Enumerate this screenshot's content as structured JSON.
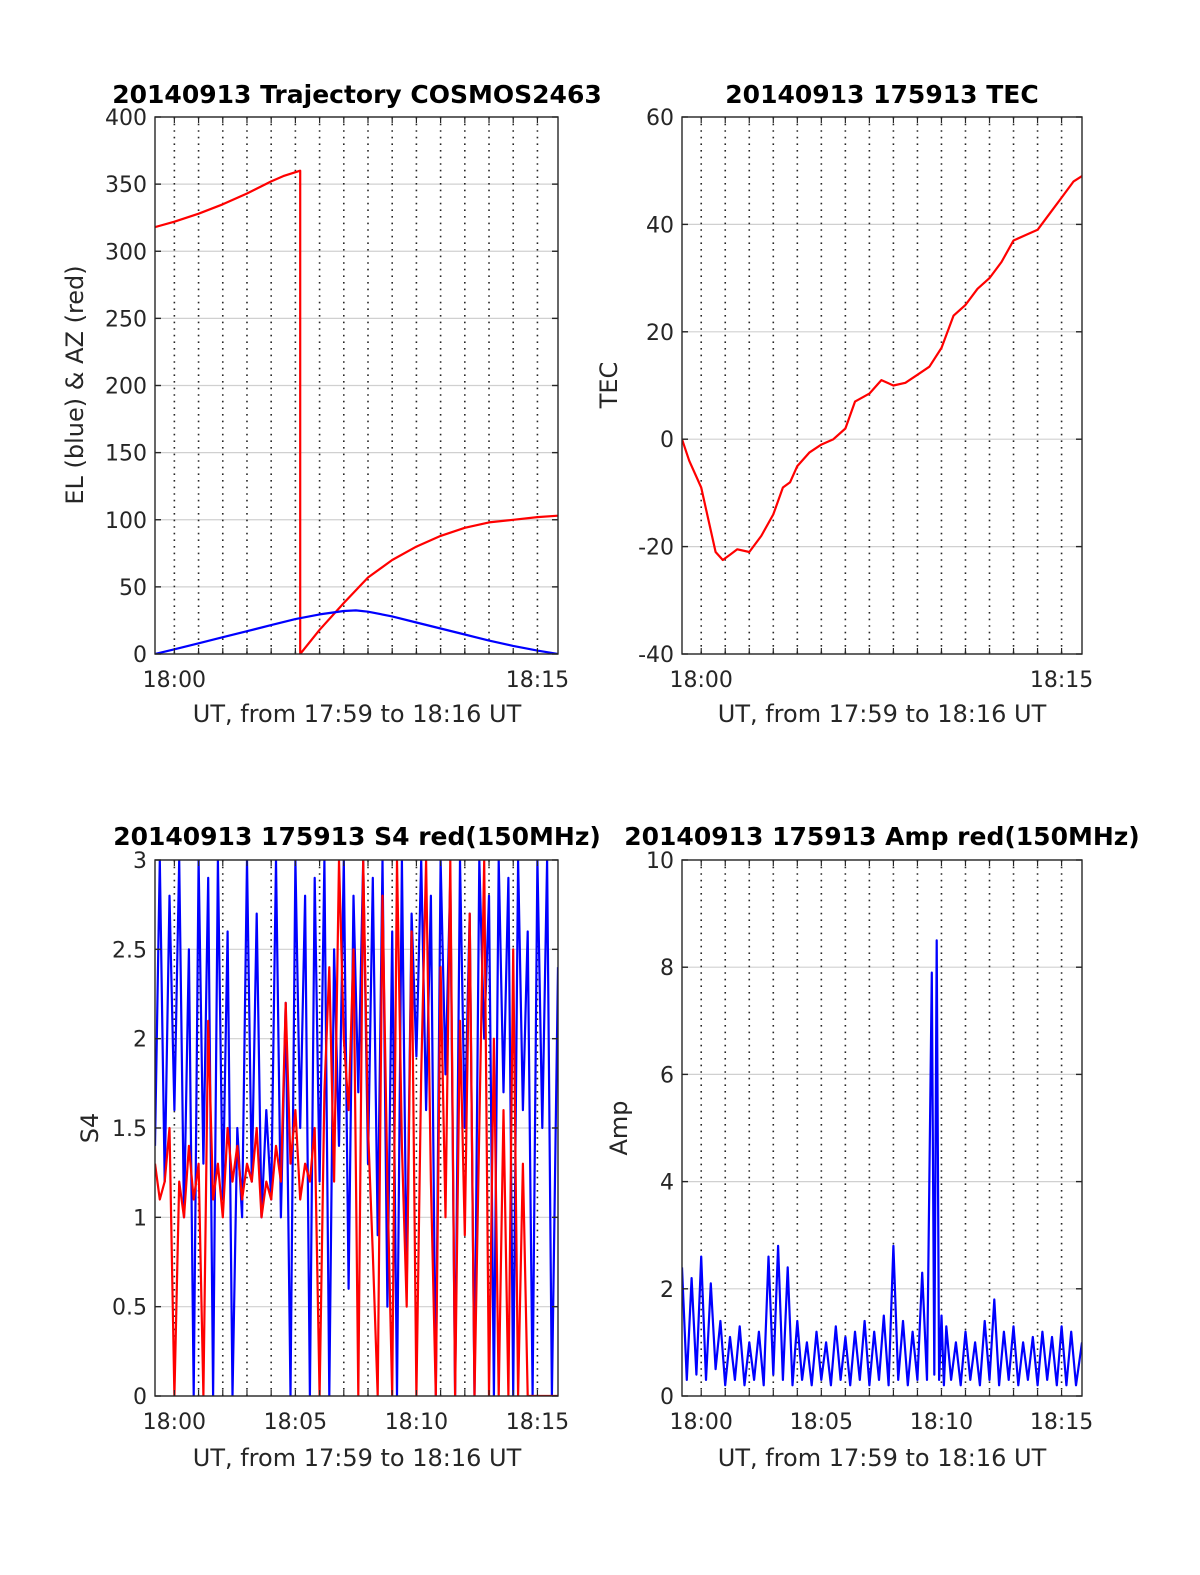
{
  "colors": {
    "el": "#0000ff",
    "az": "#ff0000",
    "tec": "#ff0000",
    "s4_blue": "#0000ff",
    "s4_red": "#ff0000",
    "amp": "#0000ff",
    "grid": "#d0d0d0",
    "vgrid": "#262626"
  },
  "chart_data": [
    {
      "id": "trajectory",
      "type": "line",
      "title": "20140913 Trajectory COSMOS2463",
      "xlabel": "UT, from 17:59 to 18:16 UT",
      "ylabel": "EL (blue) & AZ (red)",
      "xlim_min": [
        -0.8,
        15.85
      ],
      "ylim": [
        0,
        400
      ],
      "yticks": [
        0,
        50,
        100,
        150,
        200,
        250,
        300,
        350,
        400
      ],
      "xticks": [
        {
          "v": 0,
          "label": "18:00"
        },
        {
          "v": 15,
          "label": "18:15"
        }
      ],
      "grid": "on",
      "series": [
        {
          "key": "az",
          "x": [
            -0.8,
            0,
            1,
            2,
            3,
            4,
            4.5,
            5.2,
            5.2,
            6,
            7,
            8,
            9,
            10,
            11,
            12,
            13,
            14,
            15,
            15.85
          ],
          "y": [
            318,
            322,
            328,
            335,
            343,
            352,
            356,
            360,
            0,
            18,
            38,
            57,
            70,
            80,
            88,
            94,
            98,
            100,
            102,
            103
          ]
        },
        {
          "key": "el",
          "x": [
            -0.8,
            0,
            1,
            2,
            3,
            4,
            5,
            6,
            7,
            7.5,
            8,
            9,
            10,
            11,
            12,
            13,
            14,
            15,
            15.85
          ],
          "y": [
            0,
            3.5,
            8,
            12.5,
            17,
            21.5,
            26,
            29.5,
            32,
            32.5,
            31.5,
            28,
            23.5,
            19,
            14.5,
            10,
            6,
            2.5,
            0
          ]
        }
      ]
    },
    {
      "id": "tec",
      "type": "line",
      "title": "20140913 175913 TEC",
      "xlabel": "UT, from 17:59 to 18:16 UT",
      "ylabel": "TEC",
      "xlim_min": [
        -0.8,
        15.85
      ],
      "ylim": [
        -40,
        60
      ],
      "yticks": [
        -40,
        -20,
        0,
        20,
        40,
        60
      ],
      "xticks": [
        {
          "v": 0,
          "label": "18:00"
        },
        {
          "v": 15,
          "label": "18:15"
        }
      ],
      "grid": "on",
      "series": [
        {
          "key": "tec",
          "x": [
            -0.8,
            -0.5,
            0,
            0.3,
            0.6,
            0.9,
            1.2,
            1.5,
            2.0,
            2.5,
            3.0,
            3.4,
            3.7,
            4.0,
            4.5,
            5.0,
            5.5,
            6.0,
            6.4,
            7.0,
            7.5,
            8.0,
            8.5,
            9.0,
            9.5,
            10.0,
            10.5,
            11.0,
            11.5,
            12.0,
            12.5,
            13.0,
            13.5,
            14.0,
            14.5,
            15.0,
            15.5,
            15.85
          ],
          "y": [
            0,
            -4,
            -9,
            -15,
            -21,
            -22.5,
            -21.5,
            -20.5,
            -21,
            -18,
            -14,
            -9,
            -8,
            -5,
            -2.5,
            -1,
            0,
            2,
            7,
            8.5,
            11,
            10,
            10.5,
            12,
            13.5,
            17,
            23,
            25,
            28,
            30,
            33,
            37,
            38,
            39,
            42,
            45,
            48,
            49
          ]
        }
      ]
    },
    {
      "id": "s4",
      "type": "line",
      "title": "20140913 175913 S4 red(150MHz)",
      "xlabel": "UT, from 17:59 to 18:16 UT",
      "ylabel": "S4",
      "xlim_min": [
        -0.8,
        15.85
      ],
      "ylim": [
        0,
        3
      ],
      "yticks": [
        0,
        0.5,
        1,
        1.5,
        2,
        2.5,
        3
      ],
      "yticklabels": [
        "0",
        "0.5",
        "1",
        "1.5",
        "2",
        "2.5",
        "3"
      ],
      "xticks": [
        {
          "v": 0,
          "label": "18:00"
        },
        {
          "v": 5,
          "label": "18:05"
        },
        {
          "v": 10,
          "label": "18:10"
        },
        {
          "v": 15,
          "label": "18:15"
        }
      ],
      "grid": "on",
      "series": [
        {
          "key": "s4_blue",
          "x": [
            -0.8,
            -0.6,
            -0.4,
            -0.2,
            0,
            0.2,
            0.4,
            0.6,
            0.8,
            1.0,
            1.2,
            1.4,
            1.6,
            1.8,
            2.0,
            2.2,
            2.4,
            2.6,
            2.8,
            3.0,
            3.2,
            3.4,
            3.6,
            3.8,
            4.0,
            4.2,
            4.4,
            4.6,
            4.8,
            5.0,
            5.2,
            5.4,
            5.6,
            5.8,
            6.0,
            6.2,
            6.4,
            6.6,
            6.8,
            7.0,
            7.2,
            7.4,
            7.6,
            7.8,
            8.0,
            8.2,
            8.4,
            8.6,
            8.8,
            9.0,
            9.2,
            9.4,
            9.6,
            9.8,
            10.0,
            10.2,
            10.4,
            10.6,
            10.8,
            11.0,
            11.2,
            11.4,
            11.6,
            11.8,
            12.0,
            12.2,
            12.4,
            12.6,
            12.8,
            13.0,
            13.2,
            13.4,
            13.6,
            13.8,
            14.0,
            14.2,
            14.4,
            14.6,
            14.8,
            15.0,
            15.2,
            15.4,
            15.6,
            15.85
          ],
          "y": [
            1.4,
            3.0,
            1.2,
            2.8,
            1.6,
            3.0,
            1.0,
            2.5,
            0,
            3.0,
            1.3,
            2.9,
            0,
            3.0,
            1.1,
            2.6,
            0,
            1.5,
            1.0,
            3.0,
            1.2,
            2.7,
            1.0,
            1.6,
            1.1,
            3.0,
            1.0,
            2.2,
            0,
            3.0,
            1.5,
            2.8,
            0,
            2.9,
            1.2,
            3.0,
            0,
            2.5,
            1.4,
            3.0,
            0.6,
            2.8,
            1.7,
            3.0,
            1.3,
            2.9,
            0.9,
            3.0,
            0.5,
            2.6,
            0,
            3.0,
            0.6,
            2.7,
            1.9,
            3.0,
            1.6,
            2.8,
            0,
            3.0,
            1.8,
            2.9,
            0,
            3.0,
            1.5,
            2.7,
            0,
            3.0,
            2.0,
            2.8,
            0,
            3.0,
            1.7,
            2.9,
            0,
            3.0,
            1.6,
            2.6,
            0,
            3.0,
            1.5,
            3.0,
            0,
            2.4
          ]
        },
        {
          "key": "s4_red",
          "x": [
            -0.8,
            -0.6,
            -0.4,
            -0.2,
            0,
            0.2,
            0.4,
            0.6,
            0.8,
            1.0,
            1.2,
            1.4,
            1.6,
            1.8,
            2.0,
            2.2,
            2.4,
            2.6,
            2.8,
            3.0,
            3.2,
            3.4,
            3.6,
            3.8,
            4.0,
            4.2,
            4.4,
            4.6,
            4.8,
            5.0,
            5.2,
            5.4,
            5.6,
            5.8,
            6.0,
            6.2,
            6.4,
            6.6,
            6.8,
            7.0,
            7.2,
            7.4,
            7.6,
            7.8,
            8.0,
            8.2,
            8.4,
            8.6,
            8.8,
            9.0,
            9.2,
            9.4,
            9.6,
            9.8,
            10.0,
            10.2,
            10.4,
            10.6,
            10.8,
            11.0,
            11.2,
            11.4,
            11.6,
            11.8,
            12.0,
            12.2,
            12.4,
            12.6,
            12.8,
            13.0,
            13.2,
            13.4,
            13.6,
            13.8,
            14.0,
            14.2,
            14.4,
            14.6,
            14.8,
            15.0,
            15.2,
            15.4,
            15.6,
            15.85
          ],
          "y": [
            1.3,
            1.1,
            1.2,
            1.5,
            0,
            1.2,
            1.0,
            1.4,
            1.1,
            1.3,
            0,
            2.1,
            1.1,
            1.3,
            1.0,
            1.5,
            1.2,
            1.4,
            1.1,
            1.3,
            1.2,
            1.5,
            1.0,
            1.2,
            1.1,
            1.4,
            1.2,
            2.2,
            1.3,
            1.6,
            1.1,
            1.3,
            1.2,
            1.5,
            0,
            1.7,
            2.4,
            1.2,
            3.0,
            2.0,
            1.6,
            2.5,
            0,
            3.0,
            1.5,
            0.8,
            0,
            2.8,
            1.2,
            0,
            3.0,
            1.4,
            0.5,
            2.6,
            0,
            1.8,
            3.0,
            1.2,
            0,
            2.4,
            1.0,
            3.0,
            0,
            2.1,
            0.9,
            2.7,
            0,
            1.5,
            3.0,
            0,
            2.0,
            0,
            1.6,
            0,
            2.5,
            0,
            1.3,
            0,
            0,
            0,
            0,
            0,
            0,
            0
          ]
        }
      ]
    },
    {
      "id": "amp",
      "type": "line",
      "title": "20140913 175913 Amp red(150MHz)",
      "xlabel": "UT, from 17:59 to 18:16 UT",
      "ylabel": "Amp",
      "xlim_min": [
        -0.8,
        15.85
      ],
      "ylim": [
        0,
        10
      ],
      "yticks": [
        0,
        2,
        4,
        6,
        8,
        10
      ],
      "xticks": [
        {
          "v": 0,
          "label": "18:00"
        },
        {
          "v": 5,
          "label": "18:05"
        },
        {
          "v": 10,
          "label": "18:10"
        },
        {
          "v": 15,
          "label": "18:15"
        }
      ],
      "grid": "on",
      "series": [
        {
          "key": "amp",
          "x": [
            -0.8,
            -0.6,
            -0.4,
            -0.2,
            0,
            0.2,
            0.4,
            0.6,
            0.8,
            1.0,
            1.2,
            1.4,
            1.6,
            1.8,
            2.0,
            2.2,
            2.4,
            2.6,
            2.8,
            3.0,
            3.2,
            3.4,
            3.6,
            3.8,
            4.0,
            4.2,
            4.4,
            4.6,
            4.8,
            5.0,
            5.2,
            5.4,
            5.6,
            5.8,
            6.0,
            6.2,
            6.4,
            6.6,
            6.8,
            7.0,
            7.2,
            7.4,
            7.6,
            7.8,
            8.0,
            8.2,
            8.4,
            8.6,
            8.8,
            9.0,
            9.2,
            9.4,
            9.6,
            9.7,
            9.8,
            9.9,
            10.0,
            10.1,
            10.2,
            10.4,
            10.6,
            10.8,
            11.0,
            11.2,
            11.4,
            11.6,
            11.8,
            12.0,
            12.2,
            12.4,
            12.6,
            12.8,
            13.0,
            13.2,
            13.4,
            13.6,
            13.8,
            14.0,
            14.2,
            14.4,
            14.6,
            14.8,
            15.0,
            15.2,
            15.4,
            15.6,
            15.85
          ],
          "y": [
            2.4,
            0.3,
            2.2,
            0.4,
            2.6,
            0.3,
            2.1,
            0.5,
            1.4,
            0.2,
            1.1,
            0.3,
            1.3,
            0.2,
            1.0,
            0.3,
            1.2,
            0.2,
            2.6,
            0.4,
            2.8,
            0.3,
            2.4,
            0.2,
            1.4,
            0.3,
            1.0,
            0.2,
            1.2,
            0.3,
            1.0,
            0.2,
            1.3,
            0.3,
            1.1,
            0.2,
            1.2,
            0.3,
            1.4,
            0.2,
            1.2,
            0.3,
            1.5,
            0.2,
            2.8,
            0.3,
            1.4,
            0.2,
            1.2,
            0.3,
            2.3,
            0.3,
            7.9,
            0.4,
            8.5,
            0.3,
            1.5,
            0.2,
            1.3,
            0.3,
            1.0,
            0.2,
            1.2,
            0.3,
            1.0,
            0.2,
            1.4,
            0.3,
            1.8,
            0.2,
            1.2,
            0.3,
            1.3,
            0.2,
            1.0,
            0.3,
            1.1,
            0.2,
            1.2,
            0.3,
            1.1,
            0.2,
            1.3,
            0.2,
            1.2,
            0.2,
            1.0
          ]
        }
      ]
    }
  ]
}
